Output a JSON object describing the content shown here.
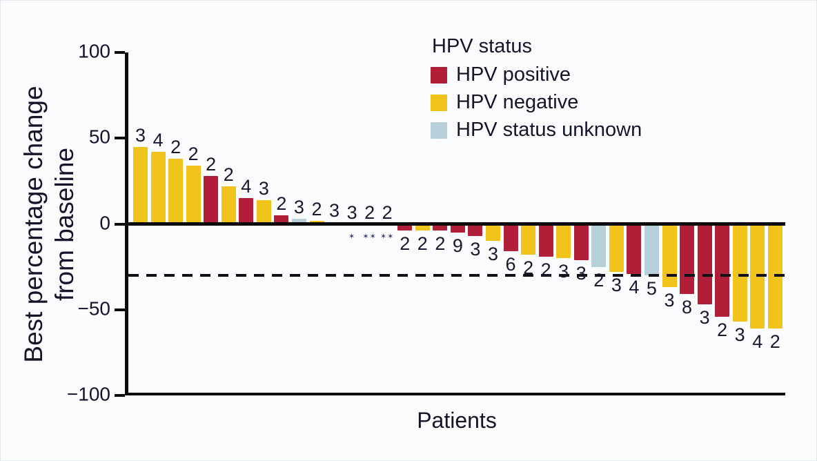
{
  "chart_data": {
    "type": "bar",
    "title": "",
    "xlabel": "Patients",
    "ylabel_lines": [
      "Best percentage change",
      "from baseline"
    ],
    "ylim": [
      -100,
      100
    ],
    "ytick_labels": [
      "100",
      "50",
      "0",
      "−50",
      "−100"
    ],
    "ytick_values": [
      100,
      50,
      0,
      -50,
      -100
    ],
    "reference_line_y": -30,
    "grid": false,
    "legend_position": "top-right",
    "legend": {
      "title": "HPV status",
      "entries": [
        {
          "label": "HPV positive",
          "status": "positive",
          "color": "#B01E38"
        },
        {
          "label": "HPV negative",
          "status": "negative",
          "color": "#F1C41C"
        },
        {
          "label": "HPV status unknown",
          "status": "unknown",
          "color": "#B6CFDB"
        }
      ]
    },
    "colors": {
      "positive": "#B01E38",
      "negative": "#F1C41C",
      "unknown": "#B6CFDB"
    },
    "bars": [
      {
        "value": 45,
        "label": "3",
        "status": "negative"
      },
      {
        "value": 42,
        "label": "4",
        "status": "negative"
      },
      {
        "value": 38,
        "label": "2",
        "status": "negative"
      },
      {
        "value": 34,
        "label": "2",
        "status": "negative"
      },
      {
        "value": 28,
        "label": "2",
        "status": "positive"
      },
      {
        "value": 22,
        "label": "2",
        "status": "negative"
      },
      {
        "value": 15,
        "label": "4",
        "status": "positive"
      },
      {
        "value": 14,
        "label": "3",
        "status": "negative"
      },
      {
        "value": 5,
        "label": "2",
        "status": "positive"
      },
      {
        "value": 3,
        "label": "3",
        "status": "unknown"
      },
      {
        "value": 2,
        "label": "2",
        "status": "negative"
      },
      {
        "value": 1,
        "label": "3",
        "status": "positive"
      },
      {
        "value": 0,
        "label": "3",
        "status": null,
        "marker": "✶"
      },
      {
        "value": 0,
        "label": "2",
        "status": null,
        "marker": "✶✶"
      },
      {
        "value": 0,
        "label": "2",
        "status": null,
        "marker": "✶✶"
      },
      {
        "value": -4,
        "label": "2",
        "status": "positive"
      },
      {
        "value": -4,
        "label": "2",
        "status": "negative"
      },
      {
        "value": -4,
        "label": "2",
        "status": "positive"
      },
      {
        "value": -5,
        "label": "9",
        "status": "positive"
      },
      {
        "value": -7,
        "label": "3",
        "status": "positive"
      },
      {
        "value": -10,
        "label": "3",
        "status": "negative"
      },
      {
        "value": -16,
        "label": "6",
        "status": "positive"
      },
      {
        "value": -18,
        "label": "2",
        "status": "negative"
      },
      {
        "value": -19,
        "label": "2",
        "status": "positive"
      },
      {
        "value": -20,
        "label": "3",
        "status": "negative"
      },
      {
        "value": -21,
        "label": "3",
        "status": "positive"
      },
      {
        "value": -25,
        "label": "2",
        "status": "unknown"
      },
      {
        "value": -28,
        "label": "3",
        "status": "negative"
      },
      {
        "value": -29,
        "label": "4",
        "status": "positive"
      },
      {
        "value": -30,
        "label": "5",
        "status": "unknown"
      },
      {
        "value": -37,
        "label": "3",
        "status": "negative"
      },
      {
        "value": -41,
        "label": "8",
        "status": "positive"
      },
      {
        "value": -47,
        "label": "3",
        "status": "positive"
      },
      {
        "value": -54,
        "label": "2",
        "status": "positive"
      },
      {
        "value": -57,
        "label": "3",
        "status": "negative"
      },
      {
        "value": -61,
        "label": "4",
        "status": "negative"
      },
      {
        "value": -61,
        "label": "2",
        "status": "negative"
      }
    ]
  }
}
